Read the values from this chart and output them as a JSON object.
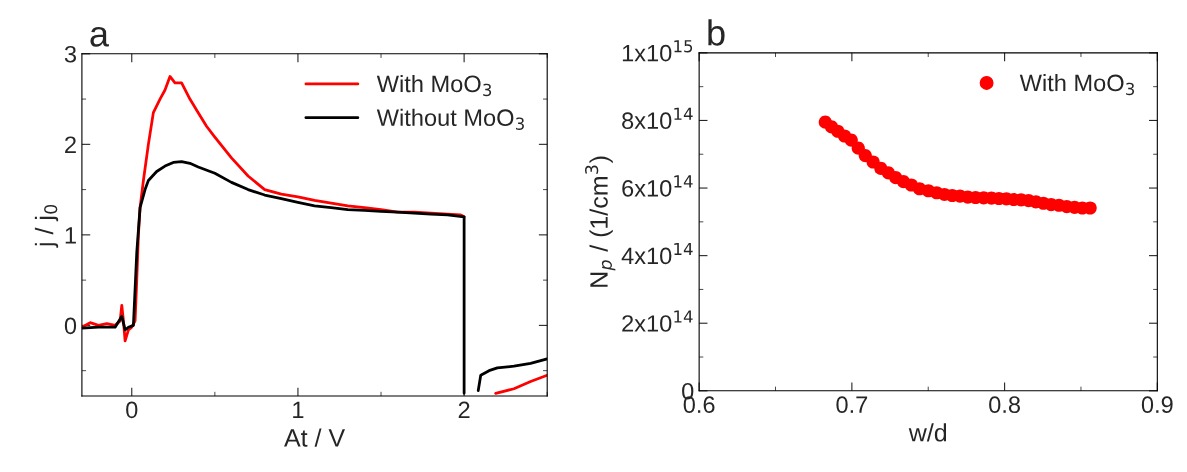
{
  "chart_data": [
    {
      "type": "line",
      "title": "a",
      "xlabel": "At / V",
      "ylabel": "j / j$_{0}$",
      "xlim": [
        -0.3,
        2.5
      ],
      "xticks": [
        0,
        1,
        2
      ],
      "ylim": [
        -0.78,
        3
      ],
      "yticks": [
        0,
        1,
        2,
        3
      ],
      "legend": "top right",
      "grid": false,
      "series": [
        {
          "name": "With MoO$_{3}$",
          "color": "#ff0000",
          "x": [
            -0.3,
            -0.25,
            -0.2,
            -0.15,
            -0.1,
            -0.07,
            -0.06,
            -0.05,
            -0.04,
            -0.02,
            0,
            0.02,
            0.03,
            0.04,
            0.05,
            0.07,
            0.1,
            0.13,
            0.17,
            0.2,
            0.23,
            0.26,
            0.3,
            0.35,
            0.4,
            0.45,
            0.5,
            0.6,
            0.7,
            0.8,
            0.9,
            1.0,
            1.1,
            1.2,
            1.3,
            1.4,
            1.5,
            1.6,
            1.7,
            1.8,
            1.9,
            1.98,
            2.0,
            2.1,
            2.19,
            2.3,
            2.4,
            2.5
          ],
          "values": [
            -0.02,
            0.03,
            0,
            0.02,
            0,
            0.05,
            0.22,
            0.05,
            -0.17,
            -0.05,
            -0.02,
            0.05,
            0.5,
            1.0,
            1.3,
            1.6,
            2.0,
            2.35,
            2.5,
            2.6,
            2.75,
            2.68,
            2.68,
            2.5,
            2.35,
            2.2,
            2.08,
            1.85,
            1.65,
            1.5,
            1.45,
            1.42,
            1.38,
            1.35,
            1.32,
            1.3,
            1.28,
            1.25,
            1.25,
            1.24,
            1.23,
            1.22,
            1.2,
            null,
            -0.75,
            -0.7,
            -0.62,
            -0.55
          ]
        },
        {
          "name": "Without MoO$_{3}$",
          "color": "#000000",
          "x": [
            -0.3,
            -0.2,
            -0.1,
            -0.06,
            -0.04,
            -0.02,
            0.01,
            0.03,
            0.05,
            0.08,
            0.1,
            0.15,
            0.2,
            0.25,
            0.3,
            0.35,
            0.4,
            0.5,
            0.6,
            0.7,
            0.8,
            0.9,
            1.0,
            1.1,
            1.2,
            1.3,
            1.4,
            1.5,
            1.6,
            1.7,
            1.8,
            1.9,
            2.0,
            2.0,
            2.04,
            2.085,
            2.1,
            2.15,
            2.2,
            2.3,
            2.4,
            2.5
          ],
          "values": [
            -0.03,
            -0.02,
            -0.02,
            0.1,
            -0.05,
            -0.02,
            0,
            0.8,
            1.3,
            1.5,
            1.6,
            1.7,
            1.76,
            1.8,
            1.81,
            1.79,
            1.75,
            1.68,
            1.58,
            1.5,
            1.44,
            1.4,
            1.36,
            1.32,
            1.3,
            1.28,
            1.27,
            1.26,
            1.25,
            1.24,
            1.23,
            1.22,
            1.2,
            -0.75,
            null,
            -0.72,
            -0.55,
            -0.5,
            -0.47,
            -0.45,
            -0.42,
            -0.37
          ]
        }
      ]
    },
    {
      "type": "scatter",
      "title": "b",
      "xlabel": "w/d",
      "ylabel": "N$_{p}$ / (1/cm$^{3}$)",
      "xlim": [
        0.6,
        0.9
      ],
      "xticks": [
        0.6,
        0.7,
        0.8,
        0.9
      ],
      "ylim": [
        0,
        1000000000000000.0
      ],
      "yticks": [
        0,
        {
          "value": 200000000000000.0,
          "label": "2x10$^{14}$"
        },
        {
          "value": 400000000000000.0,
          "label": "4x10$^{14}$"
        },
        {
          "value": 600000000000000.0,
          "label": "6x10$^{14}$"
        },
        {
          "value": 800000000000000.0,
          "label": "8x10$^{14}$"
        },
        {
          "value": 1000000000000000.0,
          "label": "1x10$^{15}$"
        }
      ],
      "legend": "top right",
      "grid": false,
      "marker": "circle",
      "series": [
        {
          "name": "With MoO$_{3}$",
          "color": "#ff0000",
          "x": [
            0.6826,
            0.6867,
            0.6908,
            0.6952,
            0.6996,
            0.7042,
            0.7088,
            0.7139,
            0.719,
            0.7239,
            0.7287,
            0.7338,
            0.7389,
            0.7443,
            0.7501,
            0.7555,
            0.7606,
            0.7657,
            0.7708,
            0.7759,
            0.781,
            0.7863,
            0.7914,
            0.7963,
            0.8012,
            0.806,
            0.8108,
            0.8157,
            0.8205,
            0.8254,
            0.8305,
            0.8356,
            0.8407,
            0.8458,
            0.8509,
            0.856
          ],
          "values": [
            795000000000000.0,
            781000000000000.0,
            768000000000000.0,
            754000000000000.0,
            742000000000000.0,
            718000000000000.0,
            696000000000000.0,
            677000000000000.0,
            658000000000000.0,
            645000000000000.0,
            631000000000000.0,
            619000000000000.0,
            609000000000000.0,
            598000000000000.0,
            592000000000000.0,
            586000000000000.0,
            581000000000000.0,
            578000000000000.0,
            576000000000000.0,
            573000000000000.0,
            572000000000000.0,
            571000000000000.0,
            570000000000000.0,
            569000000000000.0,
            568000000000000.0,
            566000000000000.0,
            565000000000000.0,
            563000000000000.0,
            559000000000000.0,
            555000000000000.0,
            551000000000000.0,
            549000000000000.0,
            545000000000000.0,
            543000000000000.0,
            541000000000000.0,
            541000000000000.0
          ]
        }
      ]
    }
  ]
}
